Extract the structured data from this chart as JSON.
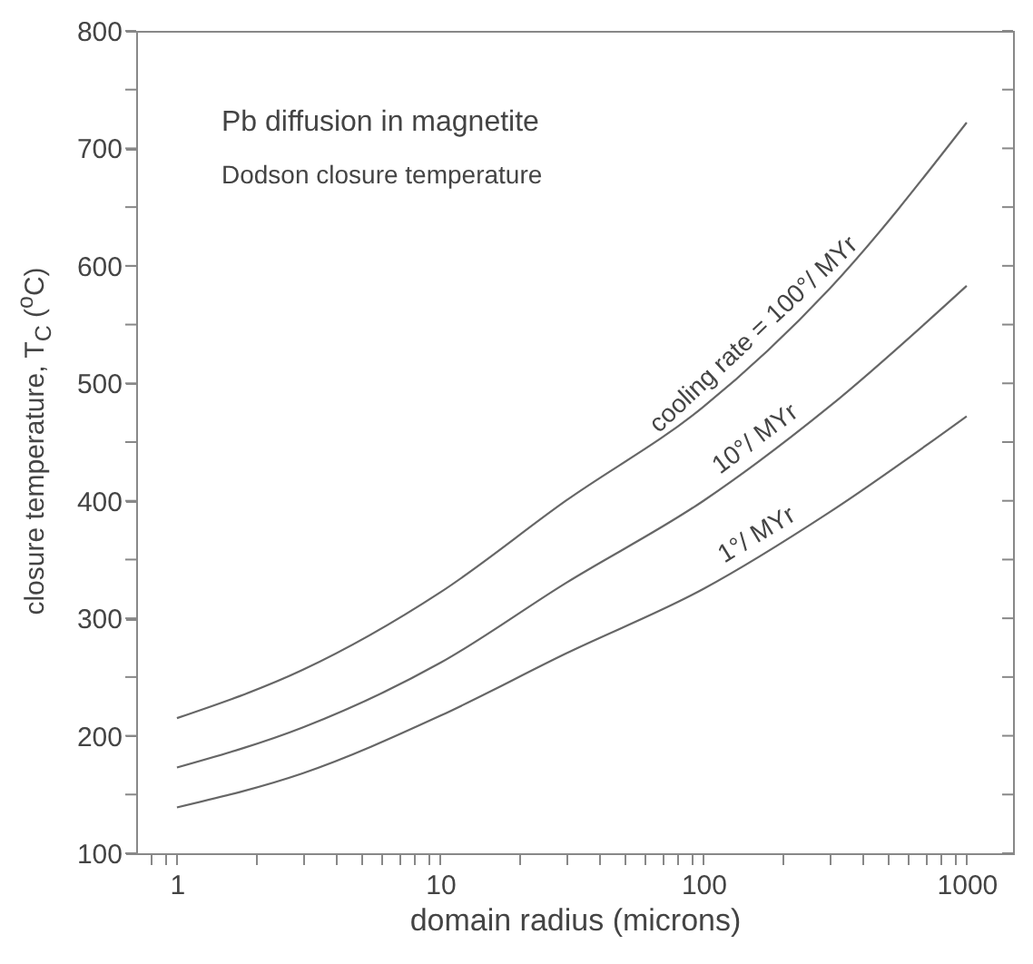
{
  "chart_data": {
    "type": "line",
    "title": "Pb diffusion in magnetite",
    "subtitle": "Dodson closure temperature",
    "xlabel": "domain radius (microns)",
    "ylabel": "closure temperature, T$_{C}$ ($^{o}$C)",
    "log": "x",
    "xlim": [
      0.7,
      1500
    ],
    "ylim": [
      100,
      800
    ],
    "xticks": [
      {
        "value": 0.8,
        "label": null
      },
      {
        "value": 0.9,
        "label": null
      },
      1,
      {
        "value": 2,
        "label": null
      },
      {
        "value": 3,
        "label": null
      },
      {
        "value": 4,
        "label": null
      },
      {
        "value": 5,
        "label": null
      },
      {
        "value": 6,
        "label": null
      },
      {
        "value": 7,
        "label": null
      },
      {
        "value": 8,
        "label": null
      },
      {
        "value": 9,
        "label": null
      },
      10,
      {
        "value": 20,
        "label": null
      },
      {
        "value": 30,
        "label": null
      },
      {
        "value": 40,
        "label": null
      },
      {
        "value": 50,
        "label": null
      },
      {
        "value": 60,
        "label": null
      },
      {
        "value": 70,
        "label": null
      },
      {
        "value": 80,
        "label": null
      },
      {
        "value": 90,
        "label": null
      },
      100,
      {
        "value": 200,
        "label": null
      },
      {
        "value": 300,
        "label": null
      },
      {
        "value": 400,
        "label": null
      },
      {
        "value": 500,
        "label": null
      },
      {
        "value": 600,
        "label": null
      },
      {
        "value": 700,
        "label": null
      },
      {
        "value": 800,
        "label": null
      },
      {
        "value": 900,
        "label": null
      },
      1000
    ],
    "yticks": [
      100,
      {
        "value": 150,
        "label": null
      },
      200,
      {
        "value": 250,
        "label": null
      },
      300,
      {
        "value": 350,
        "label": null
      },
      400,
      {
        "value": 450,
        "label": null
      },
      500,
      {
        "value": 550,
        "label": null
      },
      600,
      {
        "value": 650,
        "label": null
      },
      700,
      {
        "value": 750,
        "label": null
      },
      800
    ],
    "x": [
      1,
      3,
      10,
      30,
      100,
      300,
      1000
    ],
    "grid": false,
    "marker": "none",
    "line_style": "solid",
    "series": [
      {
        "name": "cooling rate = 100°/ MYr",
        "color": "#666666",
        "values": [
          215,
          256,
          322,
          400,
          480,
          580,
          722
        ]
      },
      {
        "name": "10°/ MYr",
        "color": "#666666",
        "values": [
          173,
          207,
          262,
          330,
          400,
          480,
          583
        ]
      },
      {
        "name": "1°/ MYr",
        "color": "#666666",
        "values": [
          139,
          168,
          217,
          270,
          325,
          390,
          472
        ]
      }
    ]
  }
}
